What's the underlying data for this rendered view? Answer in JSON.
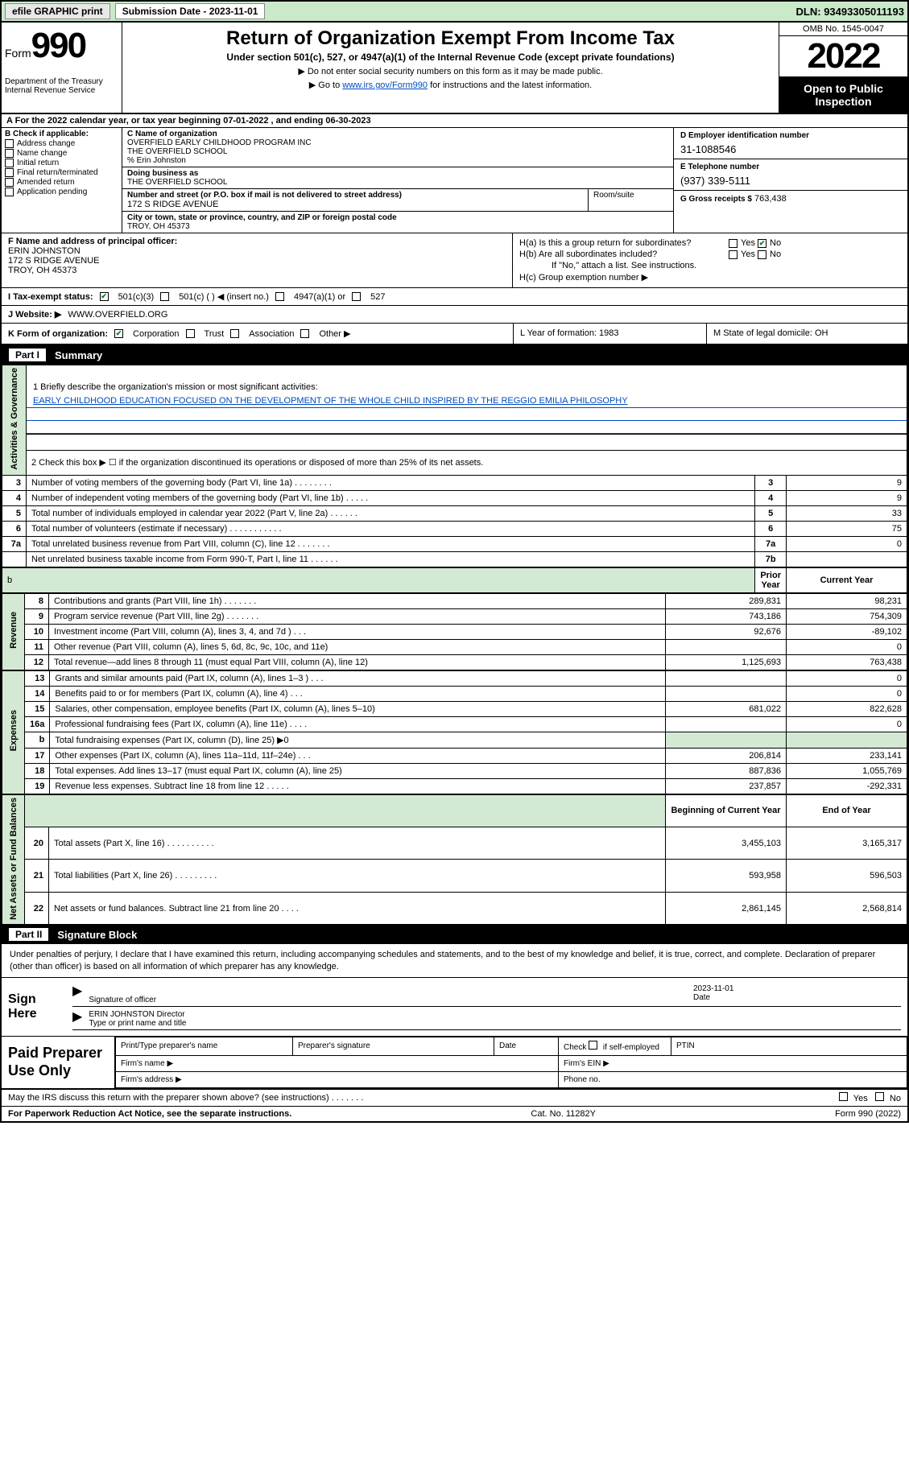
{
  "topbar": {
    "efile": "efile GRAPHIC print",
    "submission_label": "Submission Date - 2023-11-01",
    "dln_label": "DLN: 93493305011193"
  },
  "header": {
    "form_label": "Form",
    "form_num": "990",
    "title": "Return of Organization Exempt From Income Tax",
    "subtitle": "Under section 501(c), 527, or 4947(a)(1) of the Internal Revenue Code (except private foundations)",
    "note1": "▶ Do not enter social security numbers on this form as it may be made public.",
    "note2_pre": "▶ Go to ",
    "note2_link": "www.irs.gov/Form990",
    "note2_post": " for instructions and the latest information.",
    "dept": "Department of the Treasury\nInternal Revenue Service",
    "omb": "OMB No. 1545-0047",
    "year": "2022",
    "open_pub": "Open to Public Inspection"
  },
  "periodA": "For the 2022 calendar year, or tax year beginning 07-01-2022    , and ending 06-30-2023",
  "B": {
    "hdr": "B Check if applicable:",
    "items": [
      "Address change",
      "Name change",
      "Initial return",
      "Final return/terminated",
      "Amended return",
      "Application pending"
    ]
  },
  "C": {
    "name_lbl": "C Name of organization",
    "name1": "OVERFIELD EARLY CHILDHOOD PROGRAM INC",
    "name2": "THE OVERFIELD SCHOOL",
    "name3": "% Erin Johnston",
    "dba_lbl": "Doing business as",
    "dba": "THE OVERFIELD SCHOOL",
    "addr_lbl": "Number and street (or P.O. box if mail is not delivered to street address)",
    "addr": "172 S RIDGE AVENUE",
    "room_lbl": "Room/suite",
    "city_lbl": "City or town, state or province, country, and ZIP or foreign postal code",
    "city": "TROY, OH  45373"
  },
  "D": {
    "lbl": "D Employer identification number",
    "val": "31-1088546"
  },
  "E": {
    "lbl": "E Telephone number",
    "val": "(937) 339-5111"
  },
  "G": {
    "lbl": "G Gross receipts $",
    "val": "763,438"
  },
  "F": {
    "lbl": "F Name and address of principal officer:",
    "name": "ERIN JOHNSTON",
    "addr1": "172 S RIDGE AVENUE",
    "addr2": "TROY, OH  45373"
  },
  "H": {
    "a": "H(a)  Is this a group return for subordinates?",
    "b": "H(b)  Are all subordinates included?",
    "b_note": "If \"No,\" attach a list. See instructions.",
    "c": "H(c)  Group exemption number ▶",
    "yes": "Yes",
    "no": "No"
  },
  "I": {
    "lbl": "I    Tax-exempt status:",
    "opt1": "501(c)(3)",
    "opt2": "501(c) (  ) ◀ (insert no.)",
    "opt3": "4947(a)(1) or",
    "opt4": "527"
  },
  "J": {
    "lbl": "J    Website: ▶",
    "val": "WWW.OVERFIELD.ORG"
  },
  "K": {
    "lbl": "K Form of organization:",
    "opts": [
      "Corporation",
      "Trust",
      "Association",
      "Other ▶"
    ],
    "L": "L Year of formation: 1983",
    "M": "M State of legal domicile: OH"
  },
  "partI": {
    "label": "Part I",
    "title": "Summary"
  },
  "summary": {
    "q1": "1  Briefly describe the organization's mission or most significant activities:",
    "mission": "EARLY CHILDHOOD EDUCATION FOCUSED ON THE DEVELOPMENT OF THE WHOLE CHILD INSPIRED BY THE REGGIO EMILIA PHILOSOPHY",
    "q2": "2   Check this box ▶ ☐  if the organization discontinued its operations or disposed of more than 25% of its net assets.",
    "lines_gov": [
      {
        "n": "3",
        "t": "Number of voting members of the governing body (Part VI, line 1a)   .     .     .     .     .     .     .     .",
        "box": "3",
        "v": "9"
      },
      {
        "n": "4",
        "t": "Number of independent voting members of the governing body (Part VI, line 1b)  .     .     .     .     .",
        "box": "4",
        "v": "9"
      },
      {
        "n": "5",
        "t": "Total number of individuals employed in calendar year 2022 (Part V, line 2a)  .     .     .     .     .     .",
        "box": "5",
        "v": "33"
      },
      {
        "n": "6",
        "t": "Total number of volunteers (estimate if necessary)  .     .     .     .     .     .     .     .     .     .     .",
        "box": "6",
        "v": "75"
      },
      {
        "n": "7a",
        "t": "Total unrelated business revenue from Part VIII, column (C), line 12  .     .     .     .     .     .     .",
        "box": "7a",
        "v": "0"
      },
      {
        "n": "",
        "t": "Net unrelated business taxable income from Form 990-T, Part I, line 11  .     .     .     .     .     .",
        "box": "7b",
        "v": ""
      }
    ],
    "col_prior": "Prior Year",
    "col_curr": "Current Year",
    "rev": [
      {
        "n": "8",
        "t": "Contributions and grants (Part VIII, line 1h)   .     .     .     .     .     .     .",
        "p": "289,831",
        "c": "98,231"
      },
      {
        "n": "9",
        "t": "Program service revenue (Part VIII, line 2g)   .     .     .     .     .     .     .",
        "p": "743,186",
        "c": "754,309"
      },
      {
        "n": "10",
        "t": "Investment income (Part VIII, column (A), lines 3, 4, and 7d )   .     .     .",
        "p": "92,676",
        "c": "-89,102"
      },
      {
        "n": "11",
        "t": "Other revenue (Part VIII, column (A), lines 5, 6d, 8c, 9c, 10c, and 11e)",
        "p": "",
        "c": "0"
      },
      {
        "n": "12",
        "t": "Total revenue—add lines 8 through 11 (must equal Part VIII, column (A), line 12)",
        "p": "1,125,693",
        "c": "763,438"
      }
    ],
    "exp": [
      {
        "n": "13",
        "t": "Grants and similar amounts paid (Part IX, column (A), lines 1–3 )  .     .     .",
        "p": "",
        "c": "0"
      },
      {
        "n": "14",
        "t": "Benefits paid to or for members (Part IX, column (A), line 4)  .     .     .",
        "p": "",
        "c": "0"
      },
      {
        "n": "15",
        "t": "Salaries, other compensation, employee benefits (Part IX, column (A), lines 5–10)",
        "p": "681,022",
        "c": "822,628"
      },
      {
        "n": "16a",
        "t": "Professional fundraising fees (Part IX, column (A), line 11e)  .     .     .     .",
        "p": "",
        "c": "0"
      },
      {
        "n": "b",
        "t": "Total fundraising expenses (Part IX, column (D), line 25) ▶0",
        "p": "SHADE",
        "c": "SHADE"
      },
      {
        "n": "17",
        "t": "Other expenses (Part IX, column (A), lines 11a–11d, 11f–24e)  .     .     .",
        "p": "206,814",
        "c": "233,141"
      },
      {
        "n": "18",
        "t": "Total expenses. Add lines 13–17 (must equal Part IX, column (A), line 25)",
        "p": "887,836",
        "c": "1,055,769"
      },
      {
        "n": "19",
        "t": "Revenue less expenses. Subtract line 18 from line 12  .     .     .     .     .",
        "p": "237,857",
        "c": "-292,331"
      }
    ],
    "col_beg": "Beginning of Current Year",
    "col_end": "End of Year",
    "net": [
      {
        "n": "20",
        "t": "Total assets (Part X, line 16)  .     .     .     .     .     .     .     .     .     .",
        "p": "3,455,103",
        "c": "3,165,317"
      },
      {
        "n": "21",
        "t": "Total liabilities (Part X, line 26)  .     .     .     .     .     .     .     .     .",
        "p": "593,958",
        "c": "596,503"
      },
      {
        "n": "22",
        "t": "Net assets or fund balances. Subtract line 21 from line 20  .     .     .     .",
        "p": "2,861,145",
        "c": "2,568,814"
      }
    ],
    "side_gov": "Activities & Governance",
    "side_rev": "Revenue",
    "side_exp": "Expenses",
    "side_net": "Net Assets or Fund Balances"
  },
  "partII": {
    "label": "Part II",
    "title": "Signature Block"
  },
  "sig": {
    "decl": "Under penalties of perjury, I declare that I have examined this return, including accompanying schedules and statements, and to the best of my knowledge and belief, it is true, correct, and complete. Declaration of preparer (other than officer) is based on all information of which preparer has any knowledge.",
    "sign_here": "Sign Here",
    "sig_off": "Signature of officer",
    "date_lbl": "Date",
    "date": "2023-11-01",
    "name": "ERIN JOHNSTON  Director",
    "name_lbl": "Type or print name and title"
  },
  "prep": {
    "label": "Paid Preparer Use Only",
    "h1": "Print/Type preparer's name",
    "h2": "Preparer's signature",
    "h3": "Date",
    "h4_pre": "Check",
    "h4_post": "if self-employed",
    "h5": "PTIN",
    "firm_name": "Firm's name    ▶",
    "firm_ein": "Firm's EIN ▶",
    "firm_addr": "Firm's address ▶",
    "phone": "Phone no."
  },
  "discuss": {
    "q": "May the IRS discuss this return with the preparer shown above? (see instructions)   .     .     .     .     .     .     .",
    "yes": "Yes",
    "no": "No"
  },
  "footer": {
    "l": "For Paperwork Reduction Act Notice, see the separate instructions.",
    "m": "Cat. No. 11282Y",
    "r": "Form 990 (2022)"
  }
}
